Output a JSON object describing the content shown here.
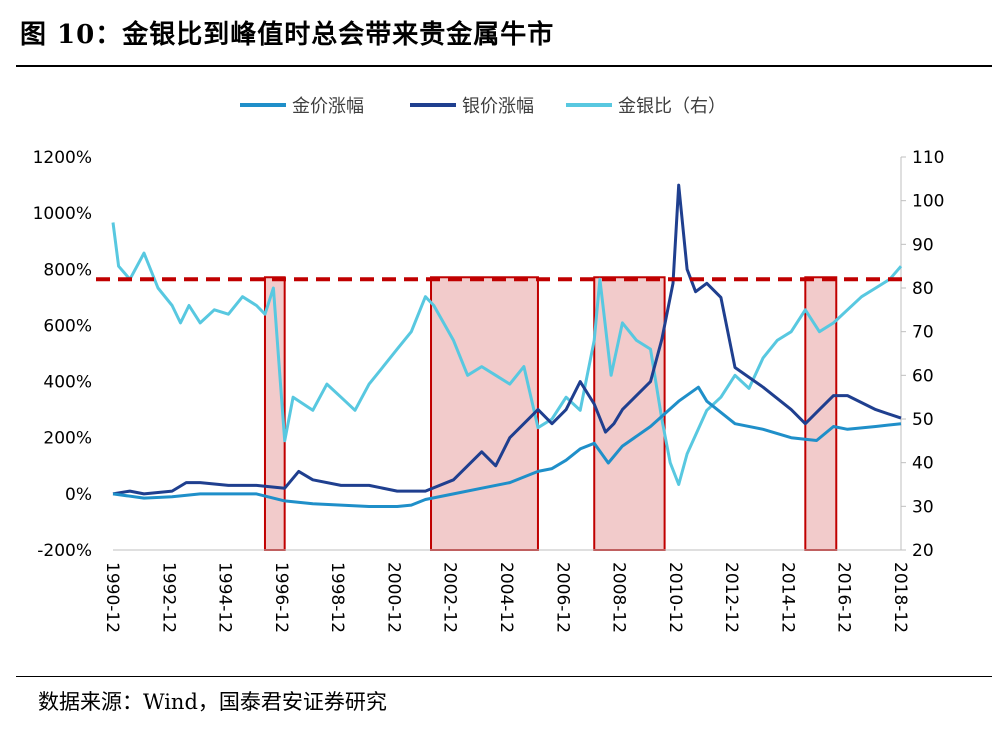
{
  "figure": {
    "title": "图 10：金银比到峰值时总会带来贵金属牛市",
    "source": "数据来源：Wind，国泰君安证券研究"
  },
  "colors": {
    "gold": "#1f8fc9",
    "silver": "#1f3f8f",
    "ratio": "#58c8e0",
    "threshold": "#c00000",
    "highlight_fill": "#e8a0a0",
    "highlight_border": "#c00000"
  },
  "chart_data": {
    "type": "line",
    "title": "",
    "legend_position": "top",
    "y_left": {
      "range": [
        -200,
        1200
      ],
      "ticks": [
        "-200%",
        "0%",
        "200%",
        "400%",
        "600%",
        "800%",
        "1000%",
        "1200%"
      ]
    },
    "y_right": {
      "range": [
        20,
        110
      ],
      "ticks": [
        "20",
        "30",
        "40",
        "50",
        "60",
        "70",
        "80",
        "90",
        "100",
        "110"
      ]
    },
    "x_ticks": [
      "1990-12",
      "1992-12",
      "1994-12",
      "1996-12",
      "1998-12",
      "2000-12",
      "2002-12",
      "2004-12",
      "2006-12",
      "2008-12",
      "2010-12",
      "2012-12",
      "2014-12",
      "2016-12",
      "2018-12"
    ],
    "threshold_line": {
      "axis": "right",
      "value": 82,
      "style": "dashed"
    },
    "highlight_periods": [
      {
        "start": 1996.3,
        "end": 1997.0
      },
      {
        "start": 2002.2,
        "end": 2006.0
      },
      {
        "start": 2008.0,
        "end": 2010.5
      },
      {
        "start": 2015.5,
        "end": 2016.6
      }
    ],
    "series": [
      {
        "name": "金价涨幅",
        "axis": "left",
        "x": [
          1990.9,
          1992,
          1993,
          1994,
          1995,
          1996,
          1997,
          1998,
          1999,
          2000,
          2001,
          2001.5,
          2002,
          2003,
          2004,
          2005,
          2006,
          2006.5,
          2007,
          2007.5,
          2008,
          2008.5,
          2009,
          2010,
          2011,
          2011.7,
          2012,
          2013,
          2014,
          2015,
          2015.9,
          2016.5,
          2017,
          2018,
          2018.9
        ],
        "y": [
          0,
          -15,
          -10,
          0,
          0,
          0,
          -25,
          -35,
          -40,
          -45,
          -45,
          -40,
          -20,
          0,
          20,
          40,
          80,
          90,
          120,
          160,
          180,
          110,
          170,
          240,
          330,
          380,
          330,
          250,
          230,
          200,
          190,
          240,
          230,
          240,
          250
        ]
      },
      {
        "name": "银价涨幅",
        "axis": "left",
        "x": [
          1990.9,
          1991.5,
          1992,
          1993,
          1993.5,
          1994,
          1995,
          1996,
          1997,
          1997.5,
          1998,
          1999,
          2000,
          2001,
          2002,
          2003,
          2004,
          2004.5,
          2005,
          2006,
          2006.5,
          2007,
          2007.5,
          2008,
          2008.4,
          2008.7,
          2009,
          2010,
          2010.4,
          2010.8,
          2011.0,
          2011.3,
          2011.6,
          2012,
          2012.5,
          2013,
          2014,
          2015,
          2015.5,
          2016,
          2016.5,
          2017,
          2018,
          2018.9
        ],
        "y": [
          0,
          10,
          0,
          10,
          40,
          40,
          30,
          30,
          20,
          80,
          50,
          30,
          30,
          10,
          10,
          50,
          150,
          100,
          200,
          300,
          250,
          300,
          400,
          320,
          220,
          250,
          300,
          400,
          550,
          750,
          1100,
          800,
          720,
          750,
          700,
          450,
          380,
          300,
          250,
          300,
          350,
          350,
          300,
          270
        ]
      },
      {
        "name": "金银比（右）",
        "axis": "right",
        "x": [
          1990.9,
          1991.1,
          1991.5,
          1992,
          1992.5,
          1993,
          1993.3,
          1993.6,
          1994,
          1994.5,
          1995,
          1995.5,
          1996,
          1996.3,
          1996.6,
          1997,
          1997.3,
          1998,
          1998.5,
          1999,
          1999.5,
          2000,
          2000.5,
          2001,
          2001.5,
          2002,
          2002.3,
          2003,
          2003.5,
          2004,
          2004.5,
          2005,
          2005.5,
          2006,
          2006.5,
          2007,
          2007.5,
          2008,
          2008.2,
          2008.6,
          2009,
          2009.5,
          2010,
          2010.4,
          2010.7,
          2011.0,
          2011.3,
          2012,
          2012.5,
          2013,
          2013.5,
          2014,
          2014.5,
          2015,
          2015.5,
          2016,
          2016.5,
          2017,
          2017.5,
          2018,
          2018.5,
          2018.9
        ],
        "y": [
          95,
          85,
          82,
          88,
          80,
          76,
          72,
          76,
          72,
          75,
          74,
          78,
          76,
          74,
          80,
          45,
          55,
          52,
          58,
          55,
          52,
          58,
          62,
          66,
          70,
          78,
          76,
          68,
          60,
          62,
          60,
          58,
          62,
          48,
          50,
          55,
          52,
          68,
          82,
          60,
          72,
          68,
          66,
          50,
          40,
          35,
          42,
          52,
          55,
          60,
          57,
          64,
          68,
          70,
          75,
          70,
          72,
          75,
          78,
          80,
          82,
          85
        ]
      }
    ]
  },
  "legend": [
    {
      "label": "金价涨幅",
      "color": "#1f8fc9"
    },
    {
      "label": "银价涨幅",
      "color": "#1f3f8f"
    },
    {
      "label": "金银比（右）",
      "color": "#58c8e0"
    }
  ]
}
